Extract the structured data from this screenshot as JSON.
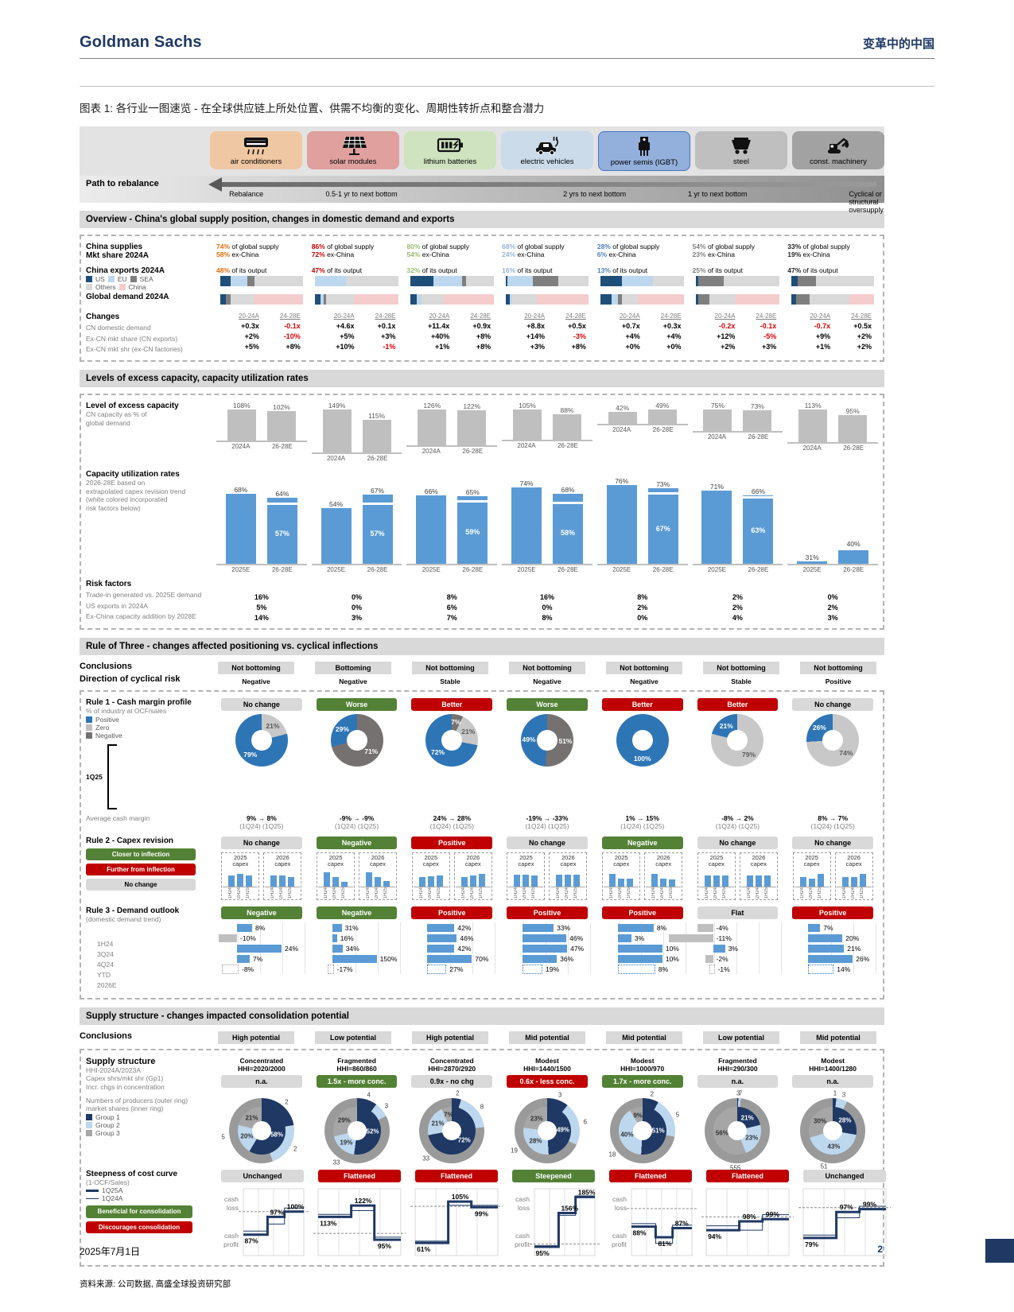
{
  "header": {
    "brand": "Goldman Sachs",
    "topic": "变革中的中国",
    "title": "图表 1: 各行业一图速览 - 在全球供应链上所处位置、供需不均衡的变化、周期性转折点和整合潜力"
  },
  "industries": [
    {
      "label": "air conditioners",
      "chip": "#efc7a2",
      "accent": "#e26b0a",
      "icon": "ac"
    },
    {
      "label": "solar modules",
      "chip": "#dfa09e",
      "accent": "#c00000",
      "icon": "solar"
    },
    {
      "label": "lithium batteries",
      "chip": "#cfe3c0",
      "accent": "#9cb86e",
      "icon": "battery"
    },
    {
      "label": "electric vehicles",
      "chip": "#ccdbea",
      "accent": "#95b3d7",
      "icon": "ev"
    },
    {
      "label": "power semis (IGBT)",
      "chip": "#93afdb",
      "accent": "#4f81bd",
      "icon": "igbt"
    },
    {
      "label": "steel",
      "chip": "#bfbfbf",
      "accent": "#7f7f7f",
      "icon": "steel"
    },
    {
      "label": "const. machinery",
      "chip": "#a2a2a2",
      "accent": "#262626",
      "icon": "excavator"
    }
  ],
  "path": {
    "label": "Path to rebalance",
    "stops": [
      {
        "text": "Rebalance",
        "x": 1
      },
      {
        "text": "0.5-1 yr to next bottom",
        "x": 13
      },
      {
        "text": "2 yrs to next bottom",
        "x": 42.5
      },
      {
        "text": "1 yr to next bottom",
        "x": 58
      },
      {
        "text": "Cyclical or structural oversupply",
        "x": 78
      }
    ]
  },
  "overview": {
    "bar": "Overview - China's global supply position, changes in domestic demand and exports",
    "row1_label": [
      "China supplies",
      "Mkt share 2024A"
    ],
    "supply_suffix": " of global supply",
    "exchina_suffix": " ex-China",
    "output_suffix": " of its output",
    "supply_pct": [
      "74%",
      "86%",
      "80%",
      "68%",
      "28%",
      "54%",
      "33%"
    ],
    "exchina_pct": [
      "58%",
      "72%",
      "54%",
      "24%",
      "6%",
      "23%",
      "19%"
    ],
    "exports_label": "China exports 2024A",
    "exports_pct": [
      "48%",
      "47%",
      "32%",
      "16%",
      "13%",
      "25%",
      "47%"
    ],
    "legend": [
      "US",
      "EU",
      "SEA",
      "Others",
      "China"
    ],
    "demand_label": "Global demand 2024A",
    "export_bars": [
      [
        [
          "us",
          13
        ],
        [
          "eu",
          20
        ],
        [
          "sea",
          9
        ],
        [
          "others",
          58
        ]
      ],
      [
        [
          "eu",
          37
        ],
        [
          "others",
          63
        ]
      ],
      [
        [
          "us",
          28
        ],
        [
          "eu",
          34
        ],
        [
          "sea",
          5
        ],
        [
          "others",
          33
        ]
      ],
      [
        [
          "us",
          2
        ],
        [
          "eu",
          31
        ],
        [
          "sea",
          30
        ],
        [
          "others",
          37
        ]
      ],
      [
        [
          "us",
          25
        ],
        [
          "eu",
          38
        ],
        [
          "others",
          37
        ]
      ],
      [
        [
          "us",
          3
        ],
        [
          "sea",
          30
        ],
        [
          "others",
          67
        ]
      ],
      [
        [
          "us",
          8
        ],
        [
          "sea",
          22
        ],
        [
          "others",
          70
        ]
      ]
    ],
    "demand_bars": [
      [
        [
          "us",
          7
        ],
        [
          "sea",
          6
        ],
        [
          "others",
          29
        ],
        [
          "china",
          58
        ]
      ],
      [
        [
          "us",
          6
        ],
        [
          "eu",
          4
        ],
        [
          "sea",
          3
        ],
        [
          "others",
          34
        ],
        [
          "china",
          53
        ]
      ],
      [
        [
          "us",
          8
        ],
        [
          "eu",
          5
        ],
        [
          "others",
          26
        ],
        [
          "china",
          61
        ]
      ],
      [
        [
          "us",
          5
        ],
        [
          "eu",
          3
        ],
        [
          "others",
          30
        ],
        [
          "china",
          62
        ]
      ],
      [
        [
          "us",
          13
        ],
        [
          "eu",
          8
        ],
        [
          "sea",
          4
        ],
        [
          "others",
          20
        ],
        [
          "china",
          55
        ]
      ],
      [
        [
          "us",
          3
        ],
        [
          "sea",
          13
        ],
        [
          "others",
          32
        ],
        [
          "china",
          52
        ]
      ],
      [
        [
          "us",
          6
        ],
        [
          "sea",
          16
        ],
        [
          "others",
          48
        ],
        [
          "china",
          30
        ]
      ]
    ],
    "changes_label": "Changes",
    "col_headers": [
      "20-24A",
      "24-28E"
    ],
    "rows": [
      {
        "label": "CN domestic demand",
        "vals": [
          [
            "+0.3x",
            "-0.1x"
          ],
          [
            "+4.6x",
            "+0.1x"
          ],
          [
            "+11.4x",
            "+0.9x"
          ],
          [
            "+8.8x",
            "+0.5x"
          ],
          [
            "+0.7x",
            "+0.3x"
          ],
          [
            "-0.2x",
            "-0.1x"
          ],
          [
            "-0.7x",
            "+0.5x"
          ]
        ]
      },
      {
        "label": "Ex-CN mkt share (CN exports)",
        "vals": [
          [
            "+2%",
            "-10%"
          ],
          [
            "+5%",
            "+3%"
          ],
          [
            "+40%",
            "+8%"
          ],
          [
            "+14%",
            "-3%"
          ],
          [
            "+4%",
            "+4%"
          ],
          [
            "+12%",
            "-5%"
          ],
          [
            "+9%",
            "+2%"
          ]
        ]
      },
      {
        "label": "Ex-CN mkt shr (ex-CN factories)",
        "vals": [
          [
            "+5%",
            "+8%"
          ],
          [
            "+10%",
            "-1%"
          ],
          [
            "+1%",
            "+8%"
          ],
          [
            "+3%",
            "+8%"
          ],
          [
            "+0%",
            "+0%"
          ],
          [
            "+2%",
            "+3%"
          ],
          [
            "+1%",
            "+2%"
          ]
        ]
      }
    ]
  },
  "capacity": {
    "bar": "Levels of excess capacity, capacity utilization rates",
    "excess_label": "Level of excess capacity",
    "excess_sub": [
      "CN capacity as % of",
      "global demand"
    ],
    "excess_x": [
      "2024A",
      "26-28E"
    ],
    "excess": [
      [
        108,
        102
      ],
      [
        149,
        115
      ],
      [
        126,
        122
      ],
      [
        105,
        88
      ],
      [
        42,
        49
      ],
      [
        75,
        73
      ],
      [
        113,
        95
      ]
    ],
    "util_label": "Capacity utilization rates",
    "util_sub": [
      "2026-28E based on",
      "extrapolated capex revision trend",
      "(white colored incorporated",
      "risk factors below)"
    ],
    "util_x": [
      "2025E",
      "26-28E"
    ],
    "util": [
      {
        "v": [
          68,
          64
        ],
        "inner": 57
      },
      {
        "v": [
          54,
          67
        ],
        "inner": 57
      },
      {
        "v": [
          66,
          65
        ],
        "inner": 59
      },
      {
        "v": [
          74,
          68
        ],
        "inner": 58
      },
      {
        "v": [
          76,
          73
        ],
        "inner": 67
      },
      {
        "v": [
          71,
          66
        ],
        "inner": 63
      },
      {
        "v": [
          31,
          40
        ],
        "inner": 36,
        "h": [
          3,
          20
        ],
        "noInnerLabel": true
      }
    ],
    "risk_label": "Risk factors",
    "risk_rows": [
      {
        "label": "Trade-in generated vs. 2025E demand",
        "vals": [
          "16%",
          "0%",
          "8%",
          "16%",
          "8%",
          "2%",
          "0%"
        ]
      },
      {
        "label": "US exports in 2024A",
        "vals": [
          "5%",
          "0%",
          "6%",
          "0%",
          "2%",
          "2%",
          "2%"
        ]
      },
      {
        "label": "Ex-China capacity addition by 2028E",
        "vals": [
          "14%",
          "3%",
          "7%",
          "8%",
          "0%",
          "4%",
          "3%"
        ]
      }
    ]
  },
  "rule3sec": {
    "bar": "Rule of Three - changes affected positioning vs. cyclical inflections",
    "conclusions_label": "Conclusions",
    "conclusions": [
      "Not bottoming",
      "Bottoming",
      "Not bottoming",
      "Not bottoming",
      "Not bottoming",
      "Not bottoming",
      "Not bottoming"
    ],
    "direction_label": "Direction of cyclical risk",
    "direction": [
      "Negative",
      "Negative",
      "Stable",
      "Negative",
      "Negative",
      "Stable",
      "Positive"
    ],
    "rule1": {
      "label": "Rule 1 - Cash margin profile",
      "sub": "% of industry at OCF/sales",
      "legend": [
        {
          "t": "Positive",
          "c": "#2e75b6"
        },
        {
          "t": "Zero",
          "c": "#bfbfbf"
        },
        {
          "t": "Negative",
          "c": "#767171"
        }
      ],
      "period": "1Q25",
      "badges": [
        {
          "t": "No change",
          "k": "gray"
        },
        {
          "t": "Worse",
          "k": "green"
        },
        {
          "t": "Better",
          "k": "red"
        },
        {
          "t": "Worse",
          "k": "green"
        },
        {
          "t": "Better",
          "k": "red"
        },
        {
          "t": "Better",
          "k": "red"
        },
        {
          "t": "No change",
          "k": "gray"
        }
      ],
      "donuts": [
        [
          [
            "zero",
            21
          ],
          [
            "pos",
            79
          ]
        ],
        [
          [
            "neg",
            71
          ],
          [
            "pos",
            29
          ]
        ],
        [
          [
            "neg",
            7
          ],
          [
            "zero",
            21
          ],
          [
            "pos",
            72
          ]
        ],
        [
          [
            "neg",
            51
          ],
          [
            "pos",
            49
          ]
        ],
        [
          [
            "pos",
            100
          ]
        ],
        [
          [
            "zero",
            79
          ],
          [
            "pos",
            21
          ]
        ],
        [
          [
            "zero",
            74
          ],
          [
            "pos",
            26
          ]
        ]
      ],
      "avg_label": "Average cash margin",
      "avg": [
        "9% → 8%",
        "-9% → -9%",
        "24% → 28%",
        "-19% → -33%",
        "1% → 15%",
        "-8% → 2%",
        "8% → 7%"
      ],
      "avg_sub": "(1Q24)  (1Q25)"
    },
    "rule2": {
      "label": "Rule 2 - Capex revision",
      "legend": [
        {
          "t": "Closer to inflection",
          "k": "green"
        },
        {
          "t": "Further from inflection",
          "k": "red"
        },
        {
          "t": "No change",
          "k": "gray"
        }
      ],
      "badges": [
        {
          "t": "No change",
          "k": "gray"
        },
        {
          "t": "Negative",
          "k": "green"
        },
        {
          "t": "Positive",
          "k": "red"
        },
        {
          "t": "No change",
          "k": "gray"
        },
        {
          "t": "Negative",
          "k": "green"
        },
        {
          "t": "No change",
          "k": "gray"
        },
        {
          "t": "No change",
          "k": "gray"
        }
      ],
      "box_titles": [
        "2025 capex",
        "2026 capex"
      ],
      "bar_x": [
        "1H24",
        "2H24",
        "1H25"
      ],
      "bars": [
        [
          [
            0.72,
            0.78,
            0.7
          ],
          [
            0.7,
            0.72,
            0.62
          ]
        ],
        [
          [
            0.92,
            0.6,
            0.3
          ],
          [
            0.88,
            0.62,
            0.34
          ]
        ],
        [
          [
            0.62,
            0.66,
            0.72
          ],
          [
            0.6,
            0.7,
            0.82
          ]
        ],
        [
          [
            0.76,
            0.76,
            0.7
          ],
          [
            0.76,
            0.76,
            0.76
          ]
        ],
        [
          [
            0.82,
            0.52,
            0.5
          ],
          [
            0.82,
            0.52,
            0.46
          ]
        ],
        [
          [
            0.7,
            0.72,
            0.7
          ],
          [
            0.7,
            0.7,
            0.72
          ]
        ],
        [
          [
            0.62,
            0.5,
            0.8
          ],
          [
            0.62,
            0.62,
            0.82
          ]
        ]
      ]
    },
    "rule3": {
      "label": "Rule 3 - Demand outlook",
      "sub": "(domestic demand trend)",
      "row_labels": [
        "1H24",
        "3Q24",
        "4Q24",
        "YTD",
        "2026E"
      ],
      "badges": [
        {
          "t": "Negative",
          "k": "green"
        },
        {
          "t": "Negative",
          "k": "green"
        },
        {
          "t": "Positive",
          "k": "red"
        },
        {
          "t": "Positive",
          "k": "red"
        },
        {
          "t": "Positive",
          "k": "red"
        },
        {
          "t": "Flat",
          "k": "gray"
        },
        {
          "t": "Positive",
          "k": "red"
        }
      ],
      "values": [
        [
          8,
          -10,
          24,
          7,
          -8
        ],
        [
          31,
          16,
          34,
          150,
          -17
        ],
        [
          42,
          46,
          42,
          70,
          27
        ],
        [
          33,
          46,
          47,
          36,
          19
        ],
        [
          8,
          3,
          10,
          10,
          8
        ],
        [
          -4,
          -11,
          3,
          -2,
          -1
        ],
        [
          7,
          20,
          21,
          26,
          14
        ]
      ]
    }
  },
  "supply": {
    "bar": "Supply structure - changes impacted consolidation potential",
    "conclusions_label": "Conclusions",
    "conclusions": [
      "High potential",
      "Low potential",
      "High potential",
      "Mid potential",
      "Mid potential",
      "Low potential",
      "Mid potential"
    ],
    "label": "Supply structure",
    "hhi_label": "HHI-2024A/2023A",
    "capex_label": [
      "Capex shrs/mkt shr (Gp1)",
      "Incr. chgs in concentration"
    ],
    "structure": [
      "Concentrated",
      "Fragmented",
      "Concentrated",
      "Modest",
      "Modest",
      "Fragmented",
      "Modest"
    ],
    "hhi": [
      "HHI=2020/2000",
      "HHI=860/860",
      "HHI=2870/2920",
      "HHI=1440/1500",
      "HHI=1000/970",
      "HHI=290/300",
      "HHI=1400/1280"
    ],
    "conc_badges": [
      {
        "t": "n.a.",
        "k": "gray"
      },
      {
        "t": "1.5x - more conc.",
        "k": "green"
      },
      {
        "t": "0.9x -  no chg",
        "k": "gray"
      },
      {
        "t": "0.6x - less conc.",
        "k": "red"
      },
      {
        "t": "1.7x - more conc.",
        "k": "green"
      },
      {
        "t": "n.a.",
        "k": "gray"
      },
      {
        "t": "n.a.",
        "k": "gray"
      }
    ],
    "ring_label": [
      "Numbers of producers (outer ring)",
      "market shares (inner ring)"
    ],
    "groups": [
      "Group 1",
      "Group 2",
      "Group 3"
    ],
    "rings": [
      {
        "shares": [
          58,
          20,
          21
        ],
        "counts": [
          2,
          2,
          5
        ]
      },
      {
        "shares": [
          52,
          19,
          29
        ],
        "counts": [
          4,
          3,
          33
        ]
      },
      {
        "shares": [
          72,
          21,
          7
        ],
        "counts": [
          2,
          8,
          33
        ]
      },
      {
        "shares": [
          49,
          28,
          23
        ],
        "counts": [
          3,
          6,
          19
        ]
      },
      {
        "shares": [
          51,
          40,
          9
        ],
        "counts": [
          2,
          5,
          18
        ]
      },
      {
        "shares": [
          21,
          23,
          56
        ],
        "counts": [
          3,
          7,
          555
        ]
      },
      {
        "shares": [
          28,
          43,
          30
        ],
        "counts": [
          1,
          3,
          51
        ]
      }
    ],
    "cost": {
      "label": "Steepness of cost curve",
      "sub": "(1-OCF/Sales)",
      "legend": [
        {
          "t": "1Q25A",
          "w": 3
        },
        {
          "t": "1Q24A",
          "w": 1
        }
      ],
      "legend_badges": [
        {
          "t": "Beneficial for consolidation",
          "k": "green"
        },
        {
          "t": "Discourages consolidation",
          "k": "red"
        }
      ],
      "yl": [
        "cash loss",
        "cash profit"
      ],
      "ycols": [
        0,
        3,
        4
      ],
      "badges": [
        {
          "t": "Unchanged",
          "k": "gray"
        },
        {
          "t": "Flattened",
          "k": "red"
        },
        {
          "t": "Flattened",
          "k": "red"
        },
        {
          "t": "Steepened",
          "k": "green"
        },
        {
          "t": "Flattened",
          "k": "red"
        },
        {
          "t": "Flattened",
          "k": "red"
        },
        {
          "t": "Unchanged",
          "k": "gray"
        }
      ],
      "curves": [
        [
          87,
          97,
          100
        ],
        [
          113,
          122,
          95
        ],
        [
          61,
          105,
          99
        ],
        [
          95,
          156,
          185
        ],
        [
          88,
          81,
          87
        ],
        [
          94,
          98,
          99
        ],
        [
          79,
          97,
          99
        ]
      ]
    }
  },
  "footer": {
    "source": "资料来源: 公司数据, 高盛全球投资研究部",
    "date": "2025年7月1日",
    "page": "2"
  }
}
